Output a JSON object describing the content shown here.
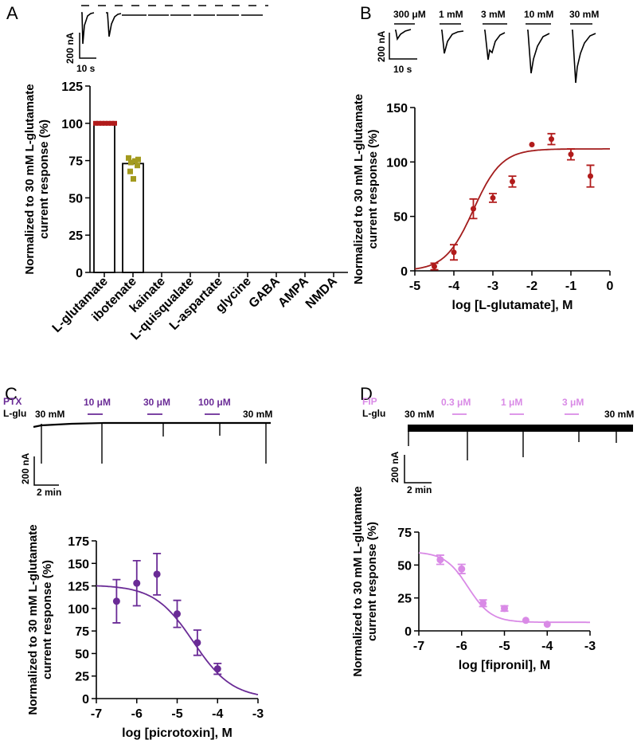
{
  "colors": {
    "ink": "#000000",
    "panel_a_bar_fill": "#ffffff",
    "glutamate_points": "#b11b1b",
    "ibotenate_points": "#a39a1e",
    "glutamate_curve": "#a31d1d",
    "ptx": "#6a2b96",
    "fip": "#d98ae6"
  },
  "panels": {
    "a": {
      "letter": "A",
      "scale_y": "200 nA",
      "scale_x": "10 s"
    },
    "b": {
      "letter": "B",
      "scale_y": "200 nA",
      "scale_x": "10 s",
      "trace_labels": [
        "300 μM",
        "1 mM",
        "3 mM",
        "10 mM",
        "30 mM"
      ]
    },
    "c": {
      "letter": "C",
      "drug_label": "PTX",
      "agonist_label": "L-glu",
      "start_label": "30 mM",
      "end_label": "30 mM",
      "trace_labels": [
        "10 μM",
        "30 μM",
        "100 μM"
      ],
      "scale_y": "200 nA",
      "scale_x": "2 min"
    },
    "d": {
      "letter": "D",
      "drug_label": "FIP",
      "agonist_label": "L-glu",
      "start_label": "30 mM",
      "end_label": "30 mM",
      "trace_labels": [
        "0.3 μM",
        "1 μM",
        "3 μM"
      ],
      "scale_y": "200 nA",
      "scale_x": "2 min"
    }
  },
  "chart_data": [
    {
      "panel": "A",
      "type": "bar",
      "ylabel_line1": "Normalized to 30 mM L-glutamate",
      "ylabel_line2": "current response (%)",
      "categories": [
        "L-glutamate",
        "ibotenate",
        "kainate",
        "L-quisqualate",
        "L-aspartate",
        "glycine",
        "GABA",
        "AMPA",
        "NMDA"
      ],
      "values": [
        100,
        73,
        0,
        0,
        0,
        0,
        0,
        0,
        0
      ],
      "ylim": [
        0,
        125
      ],
      "yticks": [
        "0",
        "25",
        "50",
        "75",
        "100",
        "125"
      ],
      "individual_points": {
        "L-glutamate": [
          100,
          100,
          100,
          100,
          100,
          100,
          100
        ],
        "ibotenate": [
          77,
          75,
          74,
          72,
          76,
          68,
          63
        ]
      }
    },
    {
      "panel": "B",
      "type": "scatter",
      "xlabel": "log [L-glutamate], M",
      "ylabel_line1": "Normalized to 30 mM L-glutamate",
      "ylabel_line2": "current response (%)",
      "xlim": [
        -5,
        0
      ],
      "ylim": [
        0,
        150
      ],
      "xticks": [
        "-5",
        "-4",
        "-3",
        "-2",
        "-1",
        "0"
      ],
      "yticks": [
        "0",
        "50",
        "100",
        "150"
      ],
      "x": [
        -4.5,
        -4.0,
        -3.5,
        -3.0,
        -2.5,
        -2.0,
        -1.5,
        -1.0,
        -0.5
      ],
      "y": [
        4,
        17,
        57,
        67,
        82,
        116,
        121,
        107,
        87
      ],
      "err": [
        3,
        7,
        9,
        4,
        5,
        0,
        5,
        5,
        10
      ],
      "fit": {
        "bottom": 0,
        "top": 112,
        "logEC50": -3.5,
        "hill": 1.2
      }
    },
    {
      "panel": "C",
      "type": "scatter",
      "xlabel": "log [picrotoxin], M",
      "ylabel_line1": "Normalized to 30 mM L-glutamate",
      "ylabel_line2": "current response (%)",
      "xlim": [
        -7,
        -3
      ],
      "ylim": [
        0,
        175
      ],
      "xticks": [
        "-7",
        "-6",
        "-5",
        "-4",
        "-3"
      ],
      "yticks": [
        "0",
        "25",
        "50",
        "75",
        "100",
        "125",
        "150",
        "175"
      ],
      "x": [
        -6.5,
        -6.0,
        -5.5,
        -5.0,
        -4.5,
        -4.0
      ],
      "y": [
        108,
        128,
        138,
        94,
        62,
        33
      ],
      "err": [
        24,
        25,
        23,
        15,
        14,
        6
      ],
      "fit": {
        "bottom": 0,
        "top": 126,
        "logIC50": -4.6,
        "hill": -0.9
      }
    },
    {
      "panel": "D",
      "type": "scatter",
      "xlabel": "log [fipronil], M",
      "ylabel_line1": "Normalized to 30 mM L-glutamate",
      "ylabel_line2": "current response (%)",
      "xlim": [
        -7,
        -3
      ],
      "ylim": [
        0,
        75
      ],
      "xticks": [
        "-7",
        "-6",
        "-5",
        "-4",
        "-3"
      ],
      "yticks": [
        "0",
        "25",
        "50",
        "75"
      ],
      "x": [
        -6.5,
        -6.0,
        -5.5,
        -5.0,
        -4.5,
        -4.0
      ],
      "y": [
        54,
        47,
        21,
        17,
        8,
        5
      ],
      "err": [
        3.5,
        3.5,
        2.5,
        2,
        0,
        0
      ],
      "fit": {
        "bottom": 6.5,
        "top": 60,
        "logIC50": -5.85,
        "hill": -1.6
      }
    }
  ]
}
